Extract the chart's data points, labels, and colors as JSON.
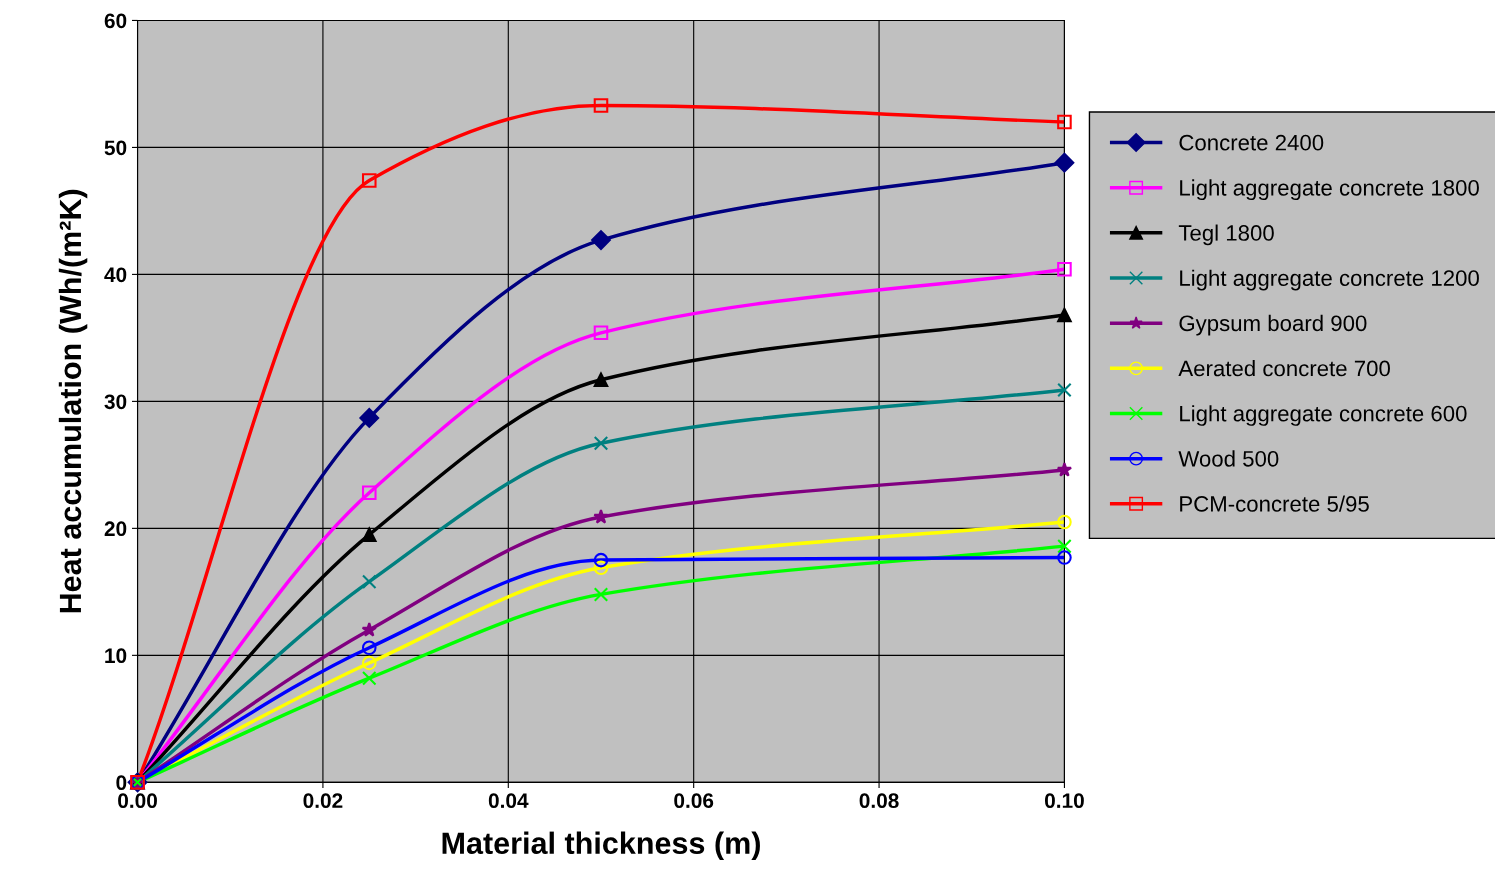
{
  "chart_data": {
    "type": "line",
    "xlabel": "Material thickness (m)",
    "ylabel": "Heat accumulation (Wh/(m²K)",
    "x": [
      0,
      0.025,
      0.05,
      0.1
    ],
    "xlim": [
      0,
      0.1
    ],
    "ylim": [
      0,
      60
    ],
    "xticks": [
      {
        "value": 0,
        "label": "0.00"
      },
      {
        "value": 0.02,
        "label": "0.02"
      },
      {
        "value": 0.04,
        "label": "0.04"
      },
      {
        "value": 0.06,
        "label": "0.06"
      },
      {
        "value": 0.08,
        "label": "0.08"
      },
      {
        "value": 0.1,
        "label": "0.10"
      }
    ],
    "yticks": [
      0,
      10,
      20,
      30,
      40,
      50,
      60
    ],
    "grid": true,
    "legend": "right",
    "series": [
      {
        "name": "Concrete 2400",
        "color": "#000080",
        "marker": "diamond",
        "values": [
          0,
          28.7,
          42.7,
          48.8
        ]
      },
      {
        "name": "Light aggregate concrete 1800",
        "color": "#ff00ff",
        "marker": "square",
        "values": [
          0,
          22.8,
          35.4,
          40.4
        ]
      },
      {
        "name": "Tegl 1800",
        "color": "#000000",
        "marker": "triangle",
        "values": [
          0,
          19.5,
          31.7,
          36.8
        ]
      },
      {
        "name": "Light aggregate concrete 1200",
        "color": "#008080",
        "marker": "cross",
        "values": [
          0,
          15.8,
          26.7,
          30.9
        ]
      },
      {
        "name": "Gypsum board 900",
        "color": "#800080",
        "marker": "star",
        "values": [
          0,
          12.0,
          20.9,
          24.6
        ]
      },
      {
        "name": "Aerated concrete 700",
        "color": "#ffff00",
        "marker": "circle",
        "values": [
          0,
          9.4,
          16.9,
          20.5
        ]
      },
      {
        "name": "Light aggregate concrete 600",
        "color": "#00ff00",
        "marker": "cross",
        "values": [
          0,
          8.2,
          14.8,
          18.6
        ]
      },
      {
        "name": "Wood 500",
        "color": "#0000ff",
        "marker": "circle",
        "values": [
          0,
          10.6,
          17.5,
          17.7
        ]
      },
      {
        "name": "PCM-concrete 5/95",
        "color": "#ff0000",
        "marker": "square",
        "values": [
          0,
          47.4,
          53.3,
          52.0
        ]
      }
    ]
  }
}
